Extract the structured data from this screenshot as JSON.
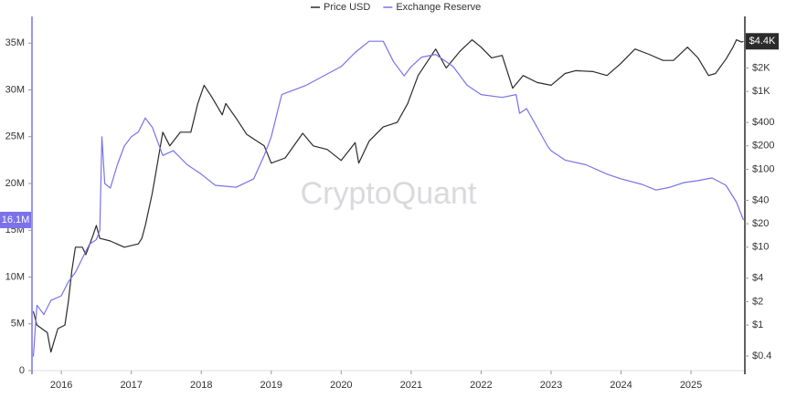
{
  "chart_data": {
    "type": "line",
    "watermark": "CryptoQuant",
    "xlim": [
      2015.58,
      2025.77
    ],
    "xticks": [
      2016,
      2017,
      2018,
      2019,
      2020,
      2021,
      2022,
      2023,
      2024,
      2025
    ],
    "ylim": [
      0,
      36000000
    ],
    "yticks": [
      0,
      {
        "value": 5000000,
        "label": "5M"
      },
      {
        "value": 10000000,
        "label": "10M"
      },
      {
        "value": 15000000,
        "label": "15M"
      },
      {
        "value": 20000000,
        "label": "20M"
      },
      {
        "value": 25000000,
        "label": "25M"
      },
      {
        "value": 30000000,
        "label": "30M"
      },
      {
        "value": 35000000,
        "label": "35M"
      }
    ],
    "y2lim": [
      0.26,
      5500
    ],
    "y2log": true,
    "y2ticks": [
      {
        "value": 0.4,
        "label": "$0.4"
      },
      {
        "value": 1,
        "label": "$1"
      },
      {
        "value": 2,
        "label": "$2"
      },
      {
        "value": 4,
        "label": "$4"
      },
      {
        "value": 10,
        "label": "$10"
      },
      {
        "value": 20,
        "label": "$20"
      },
      {
        "value": 40,
        "label": "$40"
      },
      {
        "value": 100,
        "label": "$100"
      },
      {
        "value": 200,
        "label": "$200"
      },
      {
        "value": 400,
        "label": "$400"
      },
      {
        "value": 1000,
        "label": "$1K"
      },
      {
        "value": 2000,
        "label": "$2K"
      }
    ],
    "grid": false,
    "legend": "top",
    "series": [
      {
        "name": "Price USD",
        "color": "#2b2b2b",
        "axis": "y2",
        "x": [
          2015.6,
          2015.65,
          2015.8,
          2015.85,
          2015.95,
          2016.05,
          2016.1,
          2016.15,
          2016.2,
          2016.3,
          2016.35,
          2016.45,
          2016.5,
          2016.55,
          2016.7,
          2016.9,
          2017.1,
          2017.15,
          2017.2,
          2017.3,
          2017.35,
          2017.45,
          2017.55,
          2017.7,
          2017.85,
          2017.95,
          2018.04,
          2018.15,
          2018.3,
          2018.35,
          2018.5,
          2018.65,
          2018.9,
          2019.0,
          2019.2,
          2019.45,
          2019.6,
          2019.8,
          2020.0,
          2020.2,
          2020.25,
          2020.4,
          2020.6,
          2020.8,
          2020.95,
          2021.1,
          2021.35,
          2021.5,
          2021.7,
          2021.87,
          2022.0,
          2022.15,
          2022.3,
          2022.45,
          2022.6,
          2022.8,
          2023.0,
          2023.2,
          2023.35,
          2023.6,
          2023.8,
          2024.0,
          2024.2,
          2024.4,
          2024.6,
          2024.75,
          2024.95,
          2025.1,
          2025.25,
          2025.35,
          2025.5,
          2025.6,
          2025.65,
          2025.72,
          2025.75
        ],
        "values": [
          1.5,
          1,
          0.8,
          0.45,
          0.9,
          1,
          2,
          5,
          10,
          10,
          8,
          14,
          19,
          13,
          12,
          10,
          11,
          13,
          19,
          50,
          90,
          300,
          200,
          300,
          300,
          700,
          1200,
          850,
          500,
          700,
          450,
          280,
          200,
          120,
          140,
          290,
          200,
          180,
          130,
          220,
          120,
          230,
          350,
          400,
          700,
          1600,
          3500,
          2000,
          3300,
          4600,
          3700,
          2700,
          2900,
          1100,
          1600,
          1300,
          1200,
          1700,
          1850,
          1800,
          1600,
          2300,
          3500,
          3000,
          2500,
          2500,
          3700,
          2700,
          1600,
          1700,
          2600,
          3700,
          4600,
          4300,
          4400
        ],
        "value_labels": [
          null,
          null,
          null,
          null,
          null,
          null,
          null,
          null,
          null,
          null,
          null,
          null,
          null,
          null,
          null,
          null,
          null,
          null,
          null,
          null,
          null,
          null,
          null,
          null,
          null,
          null,
          null,
          null,
          null,
          null,
          null,
          null,
          null,
          null,
          null,
          null,
          null,
          null,
          null,
          null,
          null,
          null,
          null,
          null,
          null,
          null,
          null,
          null,
          null,
          null,
          null,
          null,
          null,
          null,
          null,
          null,
          null,
          null,
          null,
          null,
          null,
          null,
          null,
          null,
          null,
          null,
          null,
          null,
          null,
          null,
          null,
          null,
          null,
          null,
          "$4.4K"
        ]
      },
      {
        "name": "Exchange Reserve",
        "color": "#7b72e9",
        "axis": "y",
        "x": [
          2015.6,
          2015.65,
          2015.75,
          2015.85,
          2016.0,
          2016.1,
          2016.2,
          2016.3,
          2016.4,
          2016.5,
          2016.55,
          2016.58,
          2016.62,
          2016.7,
          2016.8,
          2016.9,
          2017.0,
          2017.1,
          2017.2,
          2017.3,
          2017.45,
          2017.6,
          2017.8,
          2018.0,
          2018.2,
          2018.5,
          2018.75,
          2018.9,
          2019.0,
          2019.1,
          2019.15,
          2019.5,
          2020.0,
          2020.2,
          2020.4,
          2020.6,
          2020.75,
          2020.9,
          2021.0,
          2021.15,
          2021.35,
          2021.6,
          2021.8,
          2022.0,
          2022.3,
          2022.5,
          2022.55,
          2022.65,
          2022.8,
          2022.95,
          2023.0,
          2023.2,
          2023.5,
          2023.8,
          2024.0,
          2024.3,
          2024.5,
          2024.7,
          2024.9,
          2025.1,
          2025.3,
          2025.5,
          2025.65,
          2025.75
        ],
        "values": [
          1500000,
          7000000,
          6000000,
          7500000,
          8000000,
          9500000,
          10500000,
          12000000,
          13500000,
          14000000,
          15000000,
          25000000,
          20000000,
          19500000,
          22000000,
          24000000,
          25000000,
          25500000,
          27000000,
          26000000,
          23000000,
          23500000,
          22000000,
          21000000,
          19800000,
          19600000,
          20500000,
          23000000,
          25000000,
          28000000,
          29500000,
          30500000,
          32500000,
          34000000,
          35200000,
          35200000,
          33000000,
          31500000,
          32500000,
          33500000,
          33800000,
          32500000,
          30500000,
          29500000,
          29200000,
          29500000,
          27500000,
          28000000,
          26000000,
          24000000,
          23500000,
          22500000,
          22000000,
          21000000,
          20500000,
          19900000,
          19300000,
          19600000,
          20100000,
          20300000,
          20600000,
          19800000,
          18000000,
          16100000
        ],
        "value_labels": [
          null,
          null,
          null,
          null,
          null,
          null,
          null,
          null,
          null,
          null,
          null,
          null,
          null,
          null,
          null,
          null,
          null,
          null,
          null,
          null,
          null,
          null,
          null,
          null,
          null,
          null,
          null,
          null,
          null,
          null,
          null,
          null,
          null,
          null,
          null,
          null,
          null,
          null,
          null,
          null,
          null,
          null,
          null,
          null,
          null,
          null,
          null,
          null,
          null,
          null,
          null,
          null,
          null,
          null,
          null,
          null,
          null,
          null,
          null,
          null,
          null,
          null,
          null,
          "16.1M"
        ]
      }
    ]
  }
}
